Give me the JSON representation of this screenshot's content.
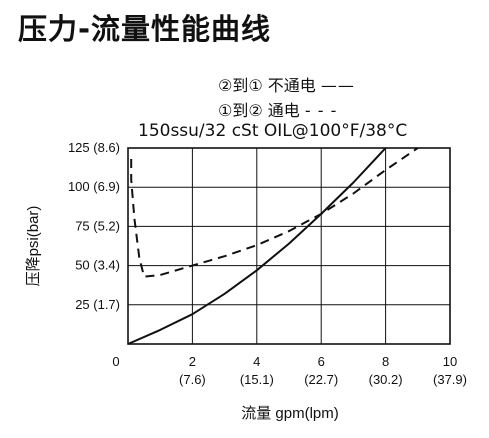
{
  "chart_data": {
    "type": "line",
    "title": "压力-流量性能曲线",
    "condition": "150ssu/32 cSt OIL@100°F/38°C",
    "xlabel": "流量 gpm(lpm)",
    "ylabel": "压降psi(bar)",
    "xlim": [
      0,
      10
    ],
    "ylim": [
      0,
      125
    ],
    "grid": true,
    "legend_position": "top-right",
    "x_ticks": [
      {
        "value": 0,
        "label": "0",
        "sub": ""
      },
      {
        "value": 2,
        "label": "2",
        "sub": "(7.6)"
      },
      {
        "value": 4,
        "label": "4",
        "sub": "(15.1)"
      },
      {
        "value": 6,
        "label": "6",
        "sub": "(22.7)"
      },
      {
        "value": 8,
        "label": "8",
        "sub": "(30.2)"
      },
      {
        "value": 10,
        "label": "10",
        "sub": "(37.9)"
      }
    ],
    "y_ticks": [
      {
        "value": 25,
        "label": "25 (1.7)"
      },
      {
        "value": 50,
        "label": "50 (3.4)"
      },
      {
        "value": 75,
        "label": "75 (5.2)"
      },
      {
        "value": 100,
        "label": "100 (6.9)"
      },
      {
        "value": 125,
        "label": "125 (8.6)"
      }
    ],
    "series": [
      {
        "name": "②到① 不通电",
        "legend_mark": "——",
        "style": "solid",
        "x": [
          0,
          1,
          2,
          3,
          4,
          5,
          6,
          7,
          8
        ],
        "y": [
          0,
          9,
          19,
          32,
          47,
          64,
          83,
          103,
          125
        ]
      },
      {
        "name": "①到② 通电",
        "legend_mark": "- - -",
        "style": "dashed",
        "x": [
          0.1,
          0.1,
          0.2,
          0.35,
          0.5,
          1,
          2,
          3,
          4,
          5,
          6,
          7,
          8,
          9
        ],
        "y": [
          118,
          105,
          80,
          55,
          43,
          44,
          50,
          56,
          63,
          72,
          83,
          96,
          111,
          125
        ]
      }
    ]
  }
}
